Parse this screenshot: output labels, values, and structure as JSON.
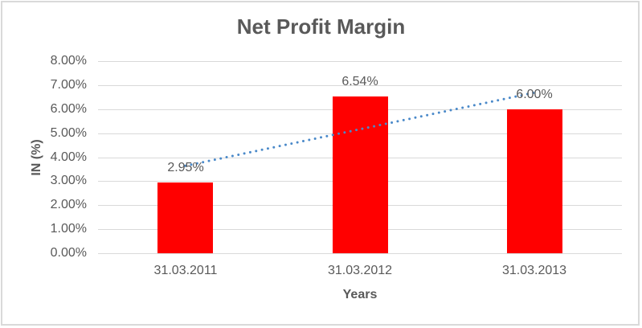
{
  "chart_data": {
    "type": "bar",
    "title": "Net Profit Margin",
    "xlabel": "Years",
    "ylabel": "IN (%)",
    "categories": [
      "31.03.2011",
      "31.03.2012",
      "31.03.2013"
    ],
    "values": [
      2.95,
      6.54,
      6.0
    ],
    "data_labels": [
      "2.95%",
      "6.54%",
      "6.00%"
    ],
    "y_tick_labels": [
      "0.00%",
      "1.00%",
      "2.00%",
      "3.00%",
      "4.00%",
      "5.00%",
      "6.00%",
      "7.00%",
      "8.00%"
    ],
    "ylim": [
      0,
      8
    ],
    "y_tick_step": 1,
    "grid": true,
    "legend": "none",
    "bar_color": "#FF0000",
    "trendline": {
      "type": "linear",
      "style": "dotted",
      "color": "#4A89C9"
    },
    "colors": {
      "text": "#595959",
      "gridline": "#D9D9D9",
      "border": "#D9D9D9",
      "background": "#FFFFFF"
    }
  }
}
